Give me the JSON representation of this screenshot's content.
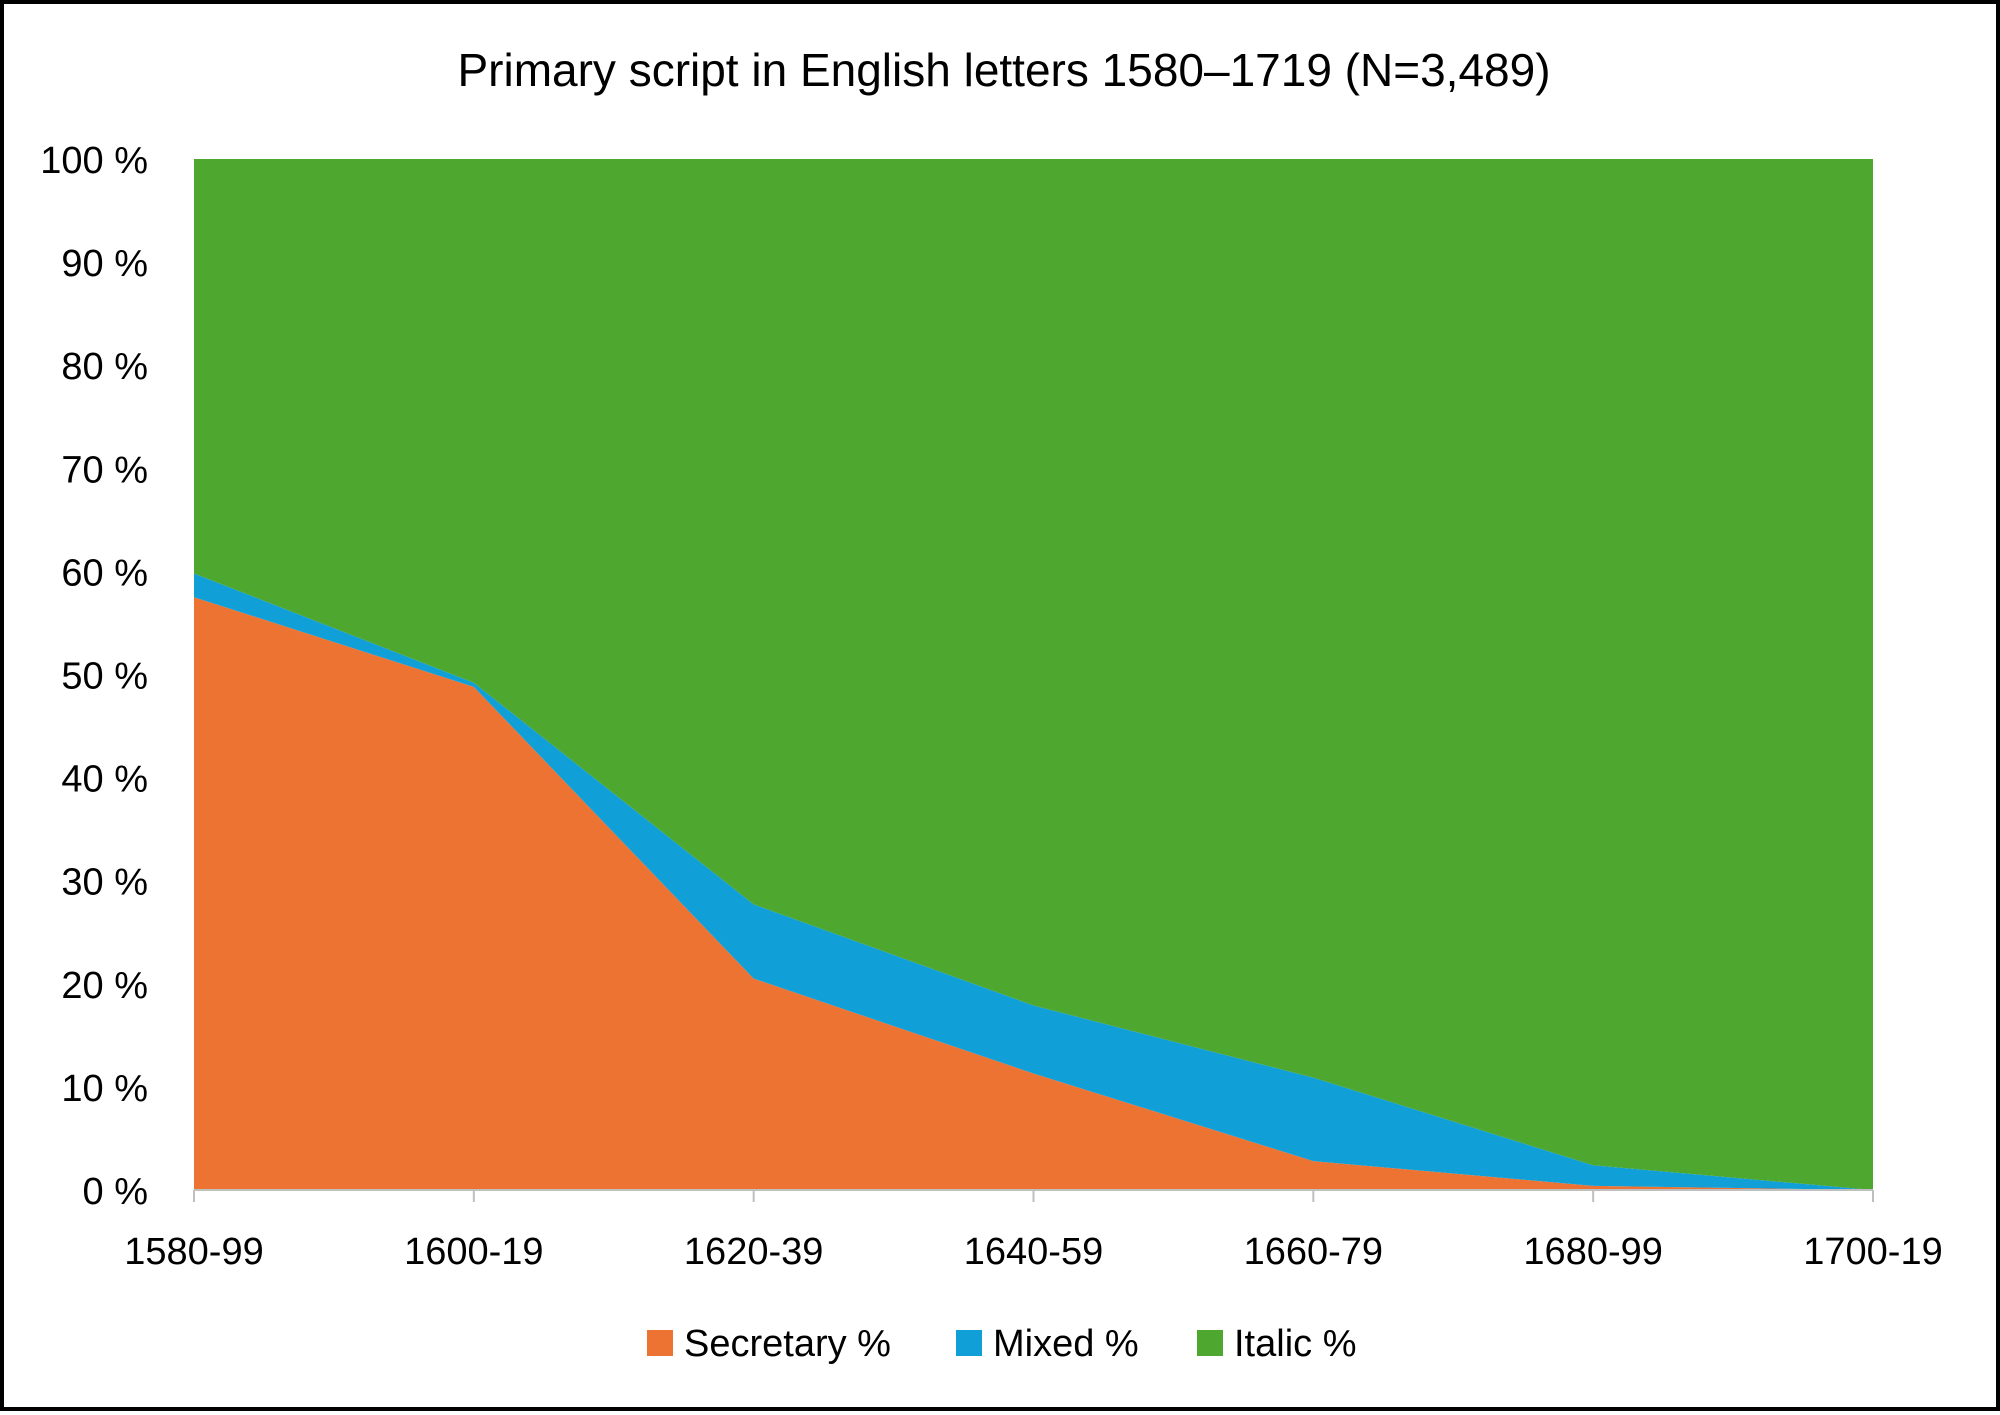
{
  "chart_data": {
    "type": "area",
    "stacked": true,
    "percent_stacked": true,
    "title": "Primary script in English letters 1580–1719 (N=3,489)",
    "xlabel": "",
    "ylabel": "",
    "categories": [
      "1580-99",
      "1600-19",
      "1620-39",
      "1640-59",
      "1660-79",
      "1680-99",
      "1700-19"
    ],
    "ylim": [
      0,
      100
    ],
    "yticks": [
      0,
      10,
      20,
      30,
      40,
      50,
      60,
      70,
      80,
      90,
      100
    ],
    "ytick_suffix": " %",
    "grid": false,
    "legend_position": "bottom",
    "series": [
      {
        "name": "Secretary %",
        "color": "#ED7333",
        "values": [
          57.5,
          48.8,
          20.5,
          11.3,
          2.8,
          0.4,
          0.0
        ]
      },
      {
        "name": "Mixed %",
        "color": "#119FD7",
        "values": [
          2.3,
          0.4,
          7.2,
          6.6,
          8.1,
          2.0,
          0.0
        ]
      },
      {
        "name": "Italic %",
        "color": "#4EA72E",
        "values": [
          40.2,
          50.8,
          72.3,
          82.1,
          89.1,
          97.6,
          100.0
        ]
      }
    ]
  }
}
